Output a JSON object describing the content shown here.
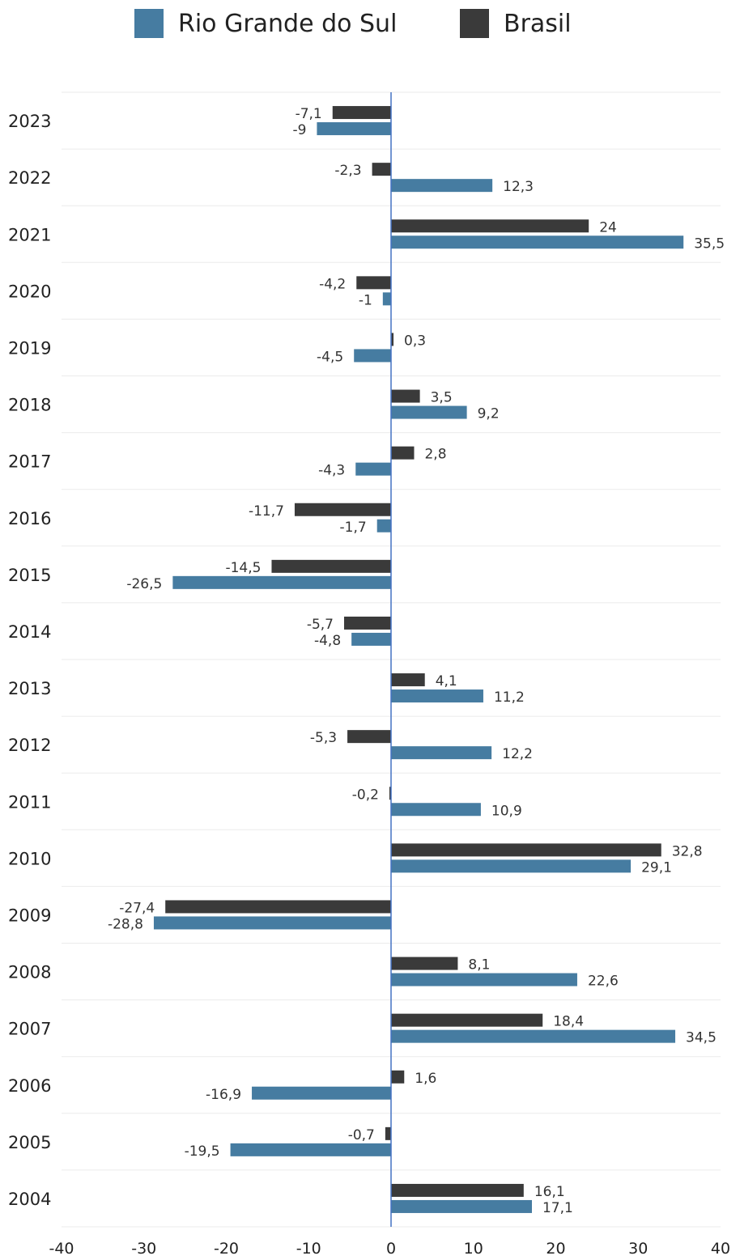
{
  "chart_data": {
    "type": "bar",
    "orientation": "horizontal",
    "categories": [
      "2023",
      "2022",
      "2021",
      "2020",
      "2019",
      "2018",
      "2017",
      "2016",
      "2015",
      "2014",
      "2013",
      "2012",
      "2011",
      "2010",
      "2009",
      "2008",
      "2007",
      "2006",
      "2005",
      "2004"
    ],
    "series": [
      {
        "name": "Brasil",
        "color": "#3a3a3a",
        "values": [
          -7.1,
          -2.3,
          24,
          -4.2,
          0.3,
          3.5,
          2.8,
          -11.7,
          -14.5,
          -5.7,
          4.1,
          -5.3,
          -0.2,
          32.8,
          -27.4,
          8.1,
          18.4,
          1.6,
          -0.7,
          16.1
        ],
        "labels": [
          "-7,1",
          "-2,3",
          "24",
          "-4,2",
          "0,3",
          "3,5",
          "2,8",
          "-11,7",
          "-14,5",
          "-5,7",
          "4,1",
          "-5,3",
          "-0,2",
          "32,8",
          "-27,4",
          "8,1",
          "18,4",
          "1,6",
          "-0,7",
          "16,1"
        ]
      },
      {
        "name": "Rio Grande do Sul",
        "color": "#467ca1",
        "values": [
          -9,
          12.3,
          35.5,
          -1,
          -4.5,
          9.2,
          -4.3,
          -1.7,
          -26.5,
          -4.8,
          11.2,
          12.2,
          10.9,
          29.1,
          -28.8,
          22.6,
          34.5,
          -16.9,
          -19.5,
          17.1
        ],
        "labels": [
          "-9",
          "12,3",
          "35,5",
          "-1",
          "-4,5",
          "9,2",
          "-4,3",
          "-1,7",
          "-26,5",
          "-4,8",
          "11,2",
          "12,2",
          "10,9",
          "29,1",
          "-28,8",
          "22,6",
          "34,5",
          "-16,9",
          "-19,5",
          "17,1"
        ]
      }
    ],
    "xlim": [
      -40,
      40
    ],
    "xticks": [
      -40,
      -30,
      -20,
      -10,
      0,
      10,
      20,
      30,
      40
    ],
    "xtick_labels": [
      "-40",
      "-30",
      "-20",
      "-10",
      "0",
      "10",
      "20",
      "30",
      "40"
    ],
    "legend": {
      "placement": "top",
      "entries": [
        {
          "name": "Rio Grande do Sul",
          "color": "#467ca1"
        },
        {
          "name": "Brasil",
          "color": "#3a3a3a"
        }
      ]
    },
    "grid": true,
    "zero_line_color": "#4472c4"
  }
}
